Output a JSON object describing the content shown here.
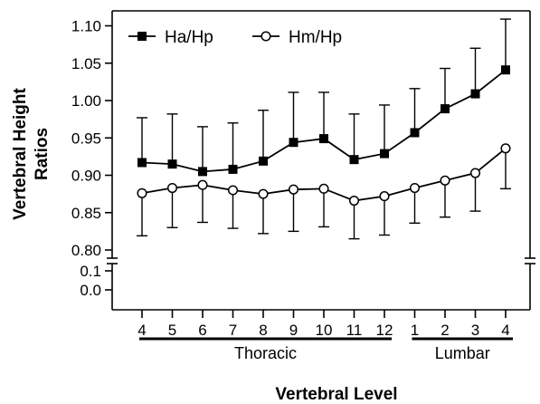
{
  "chart_data": {
    "type": "line",
    "xlabel": "Vertebral Level",
    "ylabel": "Vertebral Height Ratios",
    "categories": [
      "4",
      "5",
      "6",
      "7",
      "8",
      "9",
      "10",
      "11",
      "12",
      "1",
      "2",
      "3",
      "4"
    ],
    "groups": [
      {
        "label": "Thoracic",
        "from": 0,
        "to": 8
      },
      {
        "label": "Lumbar",
        "from": 9,
        "to": 12
      }
    ],
    "ylim": [
      0.0,
      1.12
    ],
    "axis_break": {
      "lower_segment": [
        0.0,
        0.1
      ],
      "upper_segment": [
        0.8,
        1.12
      ]
    },
    "yticks_upper": [
      "0.80",
      "0.85",
      "0.90",
      "0.95",
      "1.00",
      "1.05",
      "1.10"
    ],
    "yticks_lower": [
      "0.0",
      "0.1"
    ],
    "legend_position": "top-left",
    "grid": false,
    "series": [
      {
        "name": "Ha/Hp",
        "marker": "filled-square",
        "values": [
          0.917,
          0.915,
          0.905,
          0.908,
          0.919,
          0.944,
          0.949,
          0.921,
          0.929,
          0.957,
          0.989,
          1.009,
          1.041
        ],
        "error_direction": "up",
        "error_ends": [
          0.977,
          0.982,
          0.965,
          0.97,
          0.987,
          1.011,
          1.011,
          0.982,
          0.994,
          1.016,
          1.043,
          1.07,
          1.109
        ]
      },
      {
        "name": "Hm/Hp",
        "marker": "open-circle",
        "values": [
          0.876,
          0.883,
          0.887,
          0.88,
          0.875,
          0.881,
          0.882,
          0.866,
          0.872,
          0.883,
          0.893,
          0.903,
          0.936
        ],
        "error_direction": "down",
        "error_ends": [
          0.819,
          0.83,
          0.837,
          0.829,
          0.822,
          0.825,
          0.831,
          0.815,
          0.82,
          0.836,
          0.844,
          0.852,
          0.882
        ]
      }
    ],
    "colors": {
      "ink": "#000000",
      "background": "#ffffff"
    }
  }
}
